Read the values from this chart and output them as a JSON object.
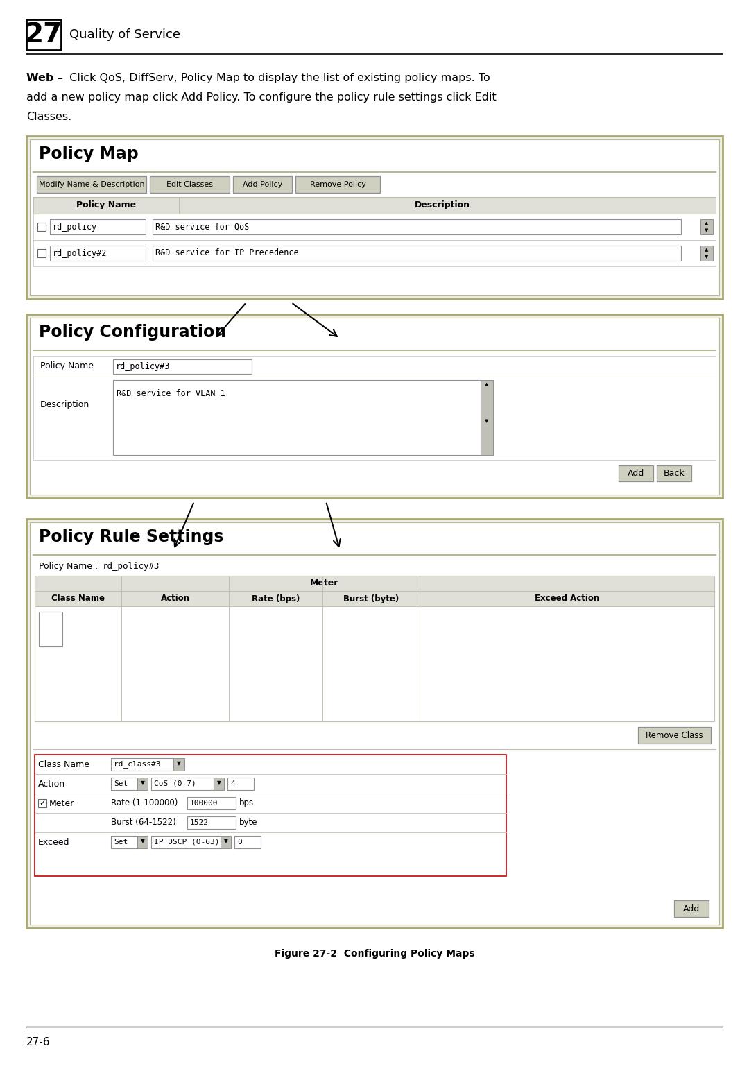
{
  "bg_color": "#ffffff",
  "chapter_num": "27",
  "chapter_title": "Quality of Service",
  "body_bold": "Web –",
  "body_line1": " Click QoS, DiffServ, Policy Map to display the list of existing policy maps. To",
  "body_line2": "add a new policy map click Add Policy. To configure the policy rule settings click Edit",
  "body_line3": "Classes.",
  "panel1_title": "Policy Map",
  "panel1_buttons": [
    "Modify Name & Description",
    "Edit Classes",
    "Add Policy",
    "Remove Policy"
  ],
  "panel1_col1": "Policy Name",
  "panel1_col2": "Description",
  "panel1_row1_name": "rd_policy",
  "panel1_row1_desc": "R&D service for QoS",
  "panel1_row2_name": "rd_policy#2",
  "panel1_row2_desc": "R&D service for IP Precedence",
  "panel2_title": "Policy Configuration",
  "panel2_pn_label": "Policy Name",
  "panel2_pn_value": "rd_policy#3",
  "panel2_desc_label": "Description",
  "panel2_desc_value": "R&D service for VLAN 1",
  "panel2_btn1": "Add",
  "panel2_btn2": "Back",
  "panel3_title": "Policy Rule Settings",
  "panel3_pn_label": "Policy Name :",
  "panel3_pn_value": "rd_policy#3",
  "panel3_col1": "Class Name",
  "panel3_col2": "Action",
  "panel3_col3": "Meter",
  "panel3_col3a": "Rate (bps)",
  "panel3_col3b": "Burst (byte)",
  "panel3_col4": "Exceed Action",
  "panel3_remove_btn": "Remove Class",
  "panel3_cn_label": "Class Name",
  "panel3_cn_value": "rd_class#3",
  "panel3_act_label": "Action",
  "panel3_act_set": "Set",
  "panel3_act_cos": "CoS (0-7)",
  "panel3_act_val": "4",
  "panel3_meter_label": "Meter",
  "panel3_rate_label": "Rate (1-100000)",
  "panel3_rate_value": "100000",
  "panel3_rate_unit": "bps",
  "panel3_burst_label": "Burst (64-1522)",
  "panel3_burst_value": "1522",
  "panel3_burst_unit": "byte",
  "panel3_exc_label": "Exceed",
  "panel3_exc_set": "Set",
  "panel3_exc_dscp": "IP DSCP (0-63)",
  "panel3_exc_val": "0",
  "panel3_add_btn": "Add",
  "fig_caption": "Figure 27-2  Configuring Policy Maps",
  "page_num": "27-6",
  "panel_outer_border": "#a8a870",
  "panel_bg": "#f0f0e8",
  "panel_inner_bg": "#ffffff",
  "sep_color": "#b8b890",
  "btn_bg": "#d0d0c0",
  "btn_border": "#909090",
  "tbl_hdr_bg": "#e0e0d8",
  "input_bg": "#ffffff",
  "input_border": "#909090",
  "scroll_bg": "#c0c0b8",
  "form_border": "#cc0000",
  "row_sep": "#c0c0b0"
}
